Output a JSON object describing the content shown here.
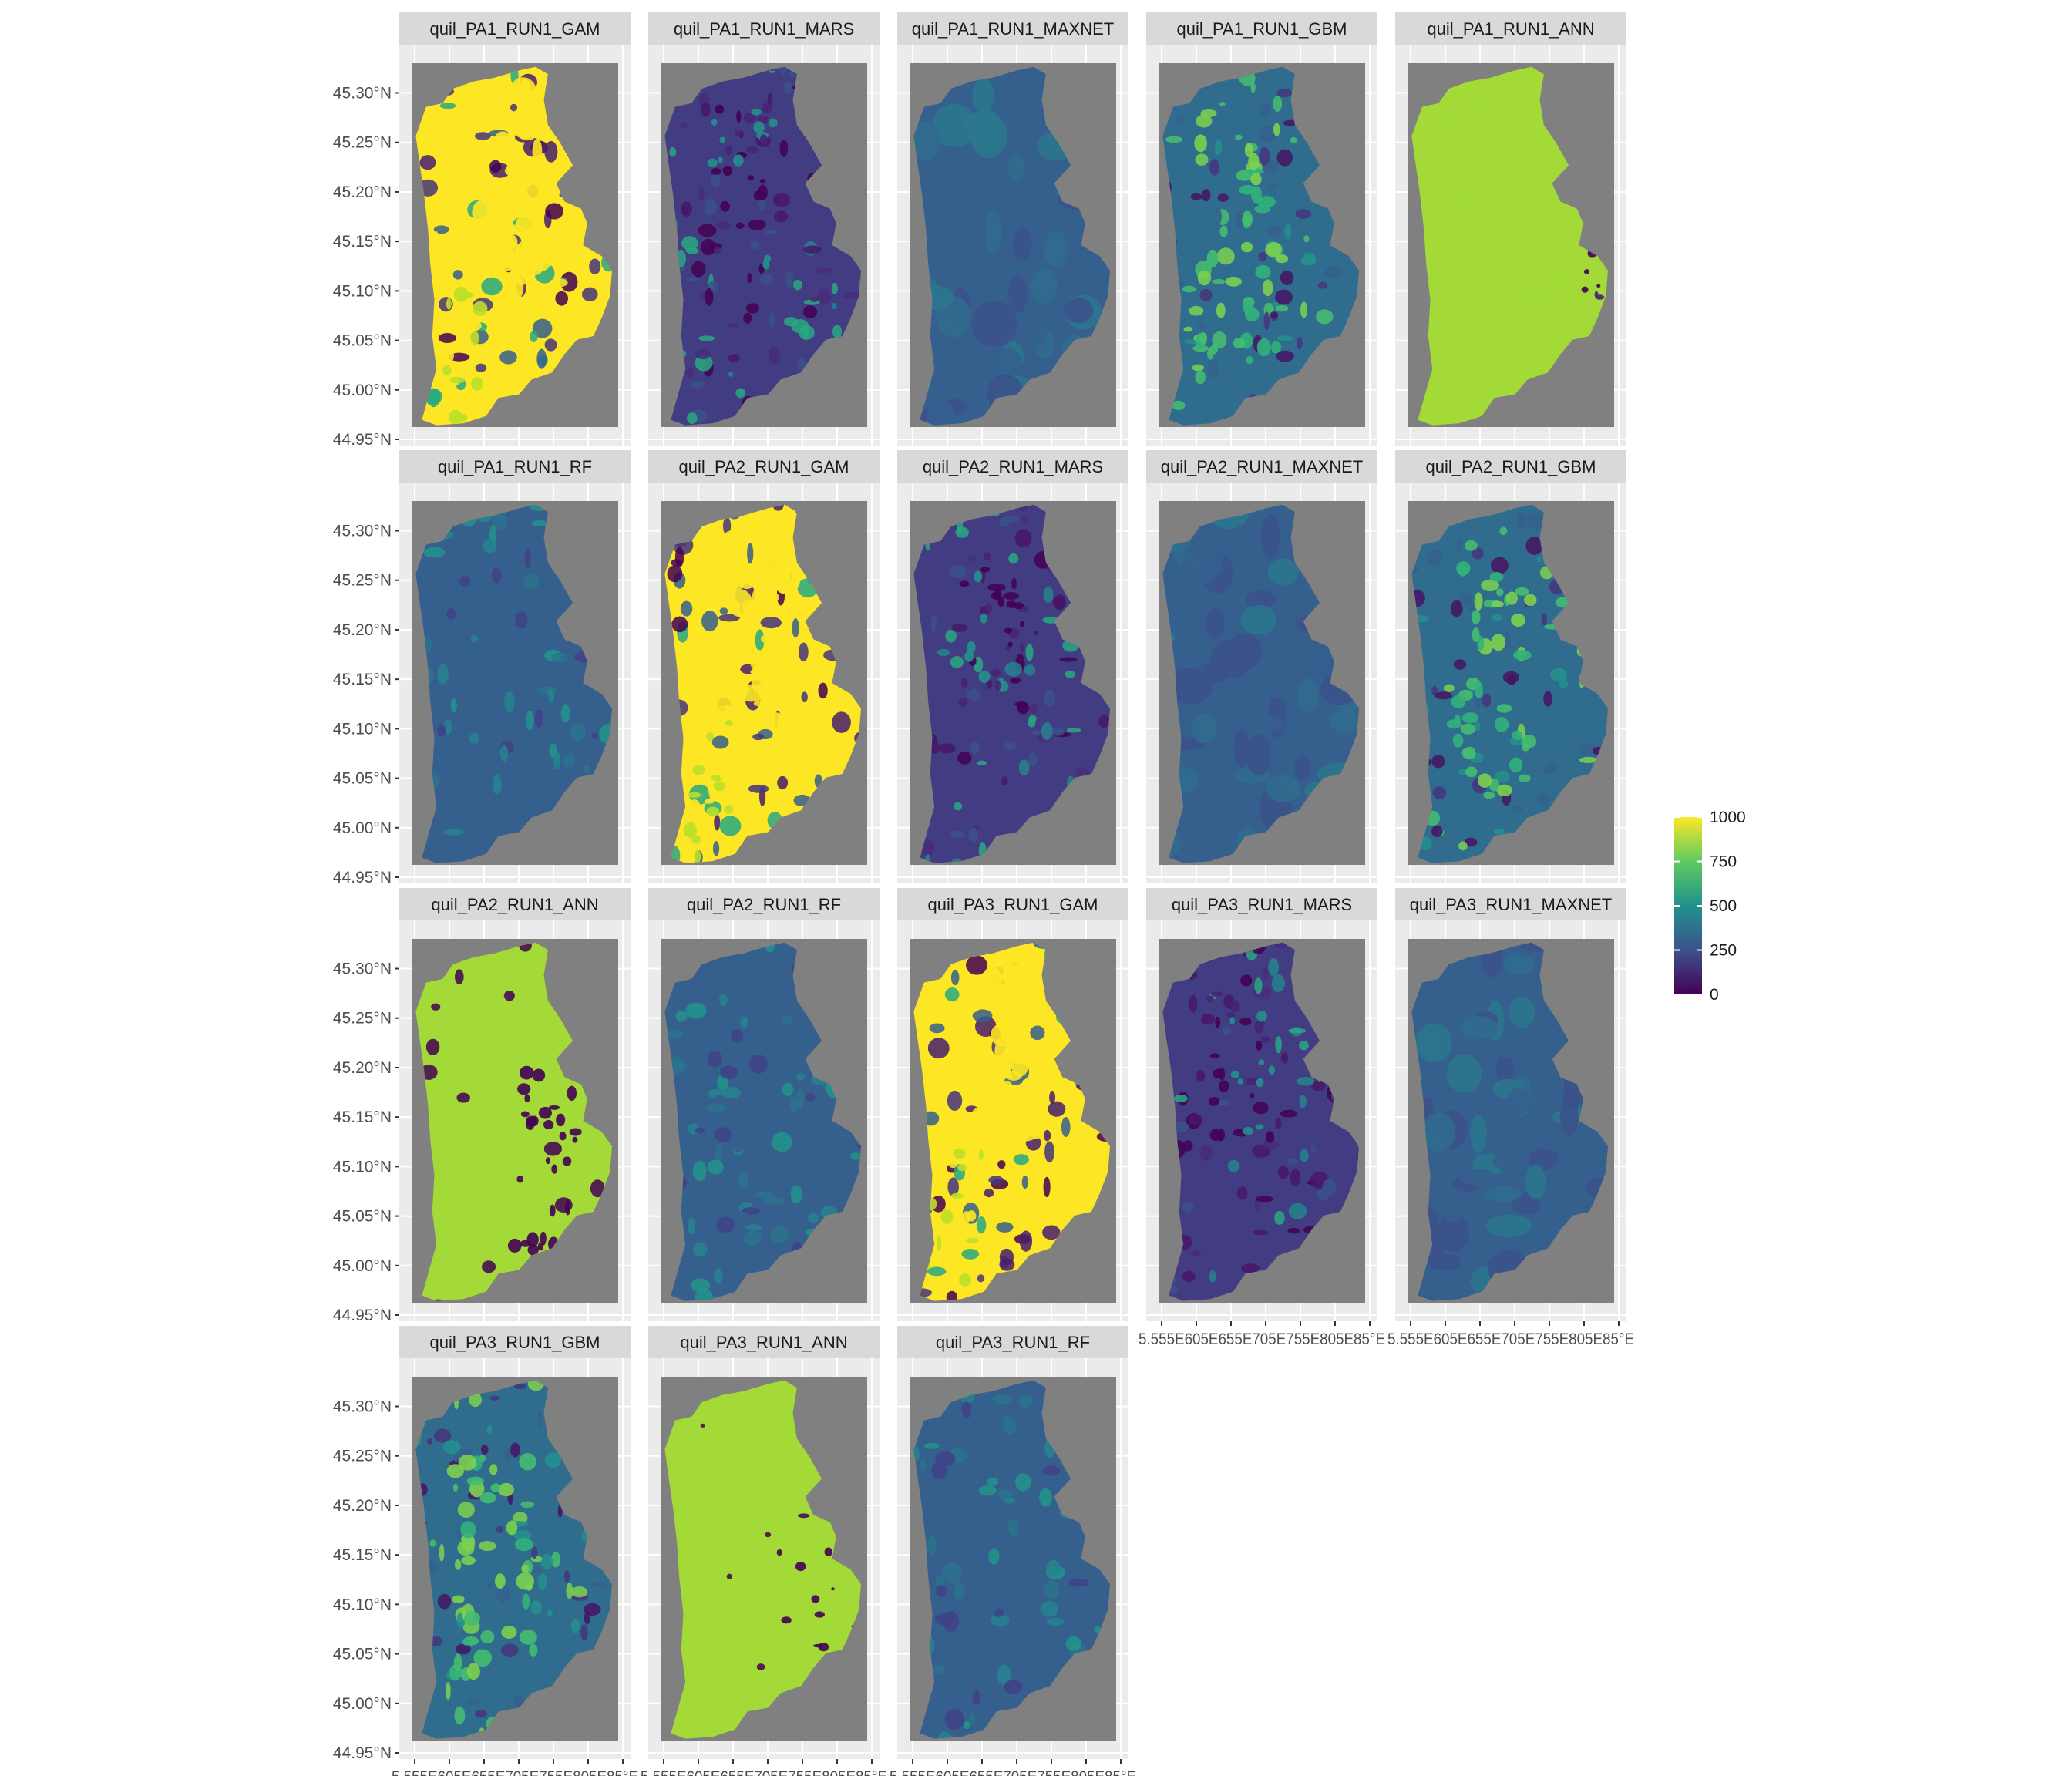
{
  "chart_data": {
    "type": "raster-map-facets",
    "panels": [
      {
        "title": "quil_PA1_RUN1_GAM",
        "dominant_value": 1000,
        "pattern": "gam"
      },
      {
        "title": "quil_PA1_RUN1_MARS",
        "dominant_value": 180,
        "pattern": "mars"
      },
      {
        "title": "quil_PA1_RUN1_MAXNET",
        "dominant_value": 300,
        "pattern": "maxnet"
      },
      {
        "title": "quil_PA1_RUN1_GBM",
        "dominant_value": 350,
        "pattern": "gbm"
      },
      {
        "title": "quil_PA1_RUN1_ANN",
        "dominant_value": 860,
        "pattern": "ann-full"
      },
      {
        "title": "quil_PA1_RUN1_RF",
        "dominant_value": 300,
        "pattern": "rf"
      },
      {
        "title": "quil_PA2_RUN1_GAM",
        "dominant_value": 1000,
        "pattern": "gam"
      },
      {
        "title": "quil_PA2_RUN1_MARS",
        "dominant_value": 180,
        "pattern": "mars"
      },
      {
        "title": "quil_PA2_RUN1_MAXNET",
        "dominant_value": 300,
        "pattern": "maxnet"
      },
      {
        "title": "quil_PA2_RUN1_GBM",
        "dominant_value": 350,
        "pattern": "gbm"
      },
      {
        "title": "quil_PA2_RUN1_ANN",
        "dominant_value": 860,
        "pattern": "ann-patchy"
      },
      {
        "title": "quil_PA2_RUN1_RF",
        "dominant_value": 300,
        "pattern": "rf"
      },
      {
        "title": "quil_PA3_RUN1_GAM",
        "dominant_value": 1000,
        "pattern": "gam"
      },
      {
        "title": "quil_PA3_RUN1_MARS",
        "dominant_value": 180,
        "pattern": "mars"
      },
      {
        "title": "quil_PA3_RUN1_MAXNET",
        "dominant_value": 300,
        "pattern": "maxnet"
      },
      {
        "title": "quil_PA3_RUN1_GBM",
        "dominant_value": 350,
        "pattern": "gbm"
      },
      {
        "title": "quil_PA3_RUN1_ANN",
        "dominant_value": 860,
        "pattern": "ann-mostly"
      },
      {
        "title": "quil_PA3_RUN1_RF",
        "dominant_value": 300,
        "pattern": "rf"
      }
    ],
    "y_ticks": [
      "44.95°N",
      "45.00°N",
      "45.05°N",
      "45.10°N",
      "45.15°N",
      "45.20°N",
      "45.25°N",
      "45.30°N"
    ],
    "y_values": [
      44.95,
      45.0,
      45.05,
      45.1,
      45.15,
      45.2,
      45.25,
      45.3
    ],
    "x_ticks": [
      "5.55°E",
      "5.60°E",
      "5.65°E",
      "5.70°E",
      "5.75°E",
      "5.80°E",
      "5.85°E"
    ],
    "x_values": [
      5.55,
      5.6,
      5.65,
      5.7,
      5.75,
      5.8,
      5.85
    ],
    "x_tick_display": "5.555E605E655E705E755E805E85°E",
    "xlim": [
      5.53,
      5.88
    ],
    "ylim": [
      44.95,
      45.33
    ],
    "legend": {
      "title": "",
      "position": "right",
      "ticks": [
        {
          "label": "1000",
          "value": 1000
        },
        {
          "label": "750",
          "value": 750
        },
        {
          "label": "500",
          "value": 500
        },
        {
          "label": "250",
          "value": 250
        },
        {
          "label": "0",
          "value": 0
        }
      ],
      "range": [
        0,
        1000
      ],
      "colors": [
        "#440154",
        "#3b528b",
        "#21918c",
        "#5ec962",
        "#fde725"
      ]
    },
    "panel_background": "#808080",
    "strip_background": "#d9d9d9",
    "grid": true
  }
}
